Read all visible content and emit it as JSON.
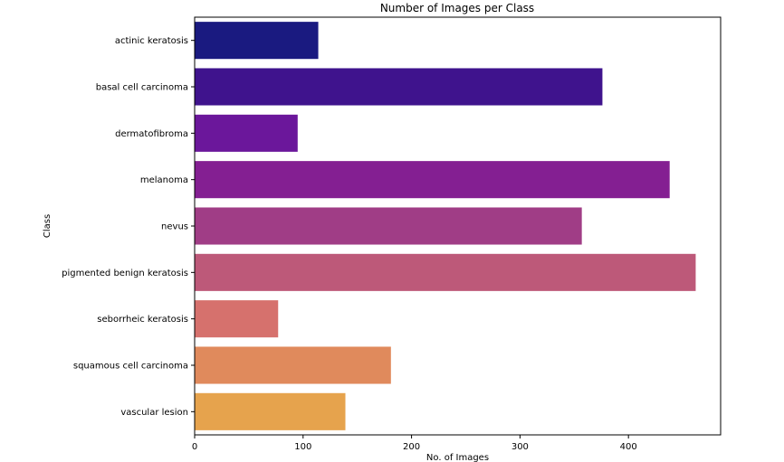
{
  "chart_data": {
    "type": "bar",
    "orientation": "horizontal",
    "title": "Number of Images per Class",
    "xlabel": "No. of Images",
    "ylabel": "Class",
    "categories": [
      "actinic keratosis",
      "basal cell carcinoma",
      "dermatofibroma",
      "melanoma",
      "nevus",
      "pigmented benign keratosis",
      "seborrheic keratosis",
      "squamous cell carcinoma",
      "vascular lesion"
    ],
    "values": [
      114,
      376,
      95,
      438,
      357,
      462,
      77,
      181,
      139
    ],
    "colors": [
      "#1a1a80",
      "#3f138d",
      "#6b179b",
      "#841f92",
      "#a03d86",
      "#bd5979",
      "#d6716d",
      "#e08a5c",
      "#e6a34d"
    ],
    "xlim": [
      0,
      485
    ],
    "xticks": [
      0,
      100,
      200,
      300,
      400
    ],
    "grid": false,
    "legend": "none"
  }
}
